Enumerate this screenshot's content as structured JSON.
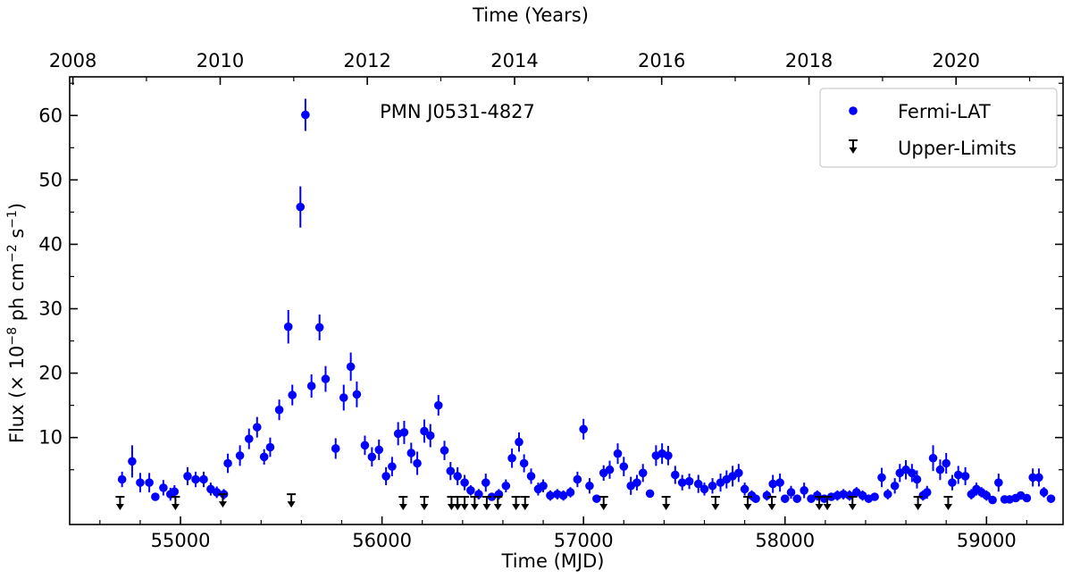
{
  "chart_data": {
    "type": "scatter",
    "title": "",
    "annotation": "PMN J0531-4827",
    "xlabel": "Time (MJD)",
    "x2label": "Time (Years)",
    "ylabel": "Flux (× 10",
    "ylabel_exp": "−8",
    "ylabel_mid": " ph cm",
    "ylabel_exp2": "−2",
    "ylabel_end": " s",
    "ylabel_exp3": "−1",
    "ylabel_close": ")",
    "xlim": [
      54450,
      59380
    ],
    "ylim": [
      -3.5,
      66
    ],
    "xticks": [
      "55000",
      "56000",
      "57000",
      "58000",
      "59000"
    ],
    "yticks": [
      "10",
      "20",
      "30",
      "40",
      "50",
      "60"
    ],
    "x2ticks": [
      "2008",
      "2010",
      "2012",
      "2014",
      "2016",
      "2018",
      "2020"
    ],
    "grid": false,
    "legend_position": "top-right",
    "legend": [
      {
        "label": "Fermi-LAT",
        "color": "#0000ff",
        "marker": "dot"
      },
      {
        "label": "Upper-Limits",
        "color": "#000000",
        "marker": "arrow"
      }
    ],
    "series": [
      {
        "name": "Fermi-LAT",
        "color": "#0000ff",
        "points": [
          [
            54710,
            3.5,
            1.2
          ],
          [
            54760,
            6.3,
            2.5
          ],
          [
            54800,
            3.0,
            1.5
          ],
          [
            54845,
            3.0,
            1.5
          ],
          [
            54875,
            0.8,
            0.6
          ],
          [
            54915,
            2.2,
            1.2
          ],
          [
            54950,
            1.2,
            1.0
          ],
          [
            54970,
            1.6,
            1.0
          ],
          [
            55035,
            4.0,
            1.4
          ],
          [
            55075,
            3.5,
            1.2
          ],
          [
            55115,
            3.5,
            1.2
          ],
          [
            55150,
            2.0,
            1.0
          ],
          [
            55180,
            1.5,
            0.9
          ],
          [
            55215,
            1.2,
            0.8
          ],
          [
            55235,
            6.0,
            1.5
          ],
          [
            55295,
            7.2,
            1.6
          ],
          [
            55340,
            9.8,
            1.6
          ],
          [
            55380,
            11.6,
            1.6
          ],
          [
            55415,
            7.0,
            1.2
          ],
          [
            55445,
            8.5,
            1.5
          ],
          [
            55490,
            14.3,
            1.6
          ],
          [
            55535,
            27.2,
            2.6
          ],
          [
            55555,
            16.6,
            1.6
          ],
          [
            55595,
            45.8,
            3.2
          ],
          [
            55620,
            60.1,
            2.5
          ],
          [
            55650,
            18.0,
            1.8
          ],
          [
            55690,
            27.1,
            2.0
          ],
          [
            55720,
            19.1,
            2.0
          ],
          [
            55770,
            8.3,
            1.6
          ],
          [
            55810,
            16.2,
            2.0
          ],
          [
            55845,
            21.0,
            2.2
          ],
          [
            55875,
            16.7,
            2.0
          ],
          [
            55915,
            8.8,
            1.5
          ],
          [
            55950,
            7.0,
            1.5
          ],
          [
            55985,
            8.1,
            1.6
          ],
          [
            56020,
            4.0,
            1.4
          ],
          [
            56050,
            5.5,
            1.5
          ],
          [
            56080,
            10.6,
            1.8
          ],
          [
            56110,
            10.8,
            1.8
          ],
          [
            56145,
            7.6,
            1.6
          ],
          [
            56175,
            6.0,
            1.8
          ],
          [
            56210,
            11.0,
            1.8
          ],
          [
            56240,
            10.3,
            1.8
          ],
          [
            56280,
            15.0,
            1.6
          ],
          [
            56310,
            8.0,
            1.5
          ],
          [
            56340,
            4.8,
            1.4
          ],
          [
            56375,
            4.0,
            1.4
          ],
          [
            56410,
            3.0,
            1.2
          ],
          [
            56440,
            1.8,
            0.8
          ],
          [
            56480,
            1.2,
            0.8
          ],
          [
            56515,
            3.0,
            1.4
          ],
          [
            56545,
            0.8,
            0.6
          ],
          [
            56580,
            1.2,
            0.8
          ],
          [
            56615,
            2.5,
            1.0
          ],
          [
            56645,
            6.8,
            1.5
          ],
          [
            56680,
            9.3,
            1.5
          ],
          [
            56705,
            6.0,
            1.4
          ],
          [
            56740,
            4.0,
            1.2
          ],
          [
            56775,
            2.0,
            1.0
          ],
          [
            56800,
            2.5,
            1.0
          ],
          [
            56835,
            1.0,
            0.8
          ],
          [
            56870,
            1.2,
            0.8
          ],
          [
            56900,
            1.0,
            0.8
          ],
          [
            56935,
            1.5,
            0.8
          ],
          [
            56970,
            3.5,
            1.2
          ],
          [
            57000,
            11.3,
            1.6
          ],
          [
            57030,
            2.5,
            1.2
          ],
          [
            57065,
            0.5,
            0.4
          ],
          [
            57100,
            4.5,
            1.2
          ],
          [
            57130,
            5.0,
            1.4
          ],
          [
            57170,
            7.5,
            1.6
          ],
          [
            57200,
            5.5,
            1.5
          ],
          [
            57235,
            2.5,
            1.4
          ],
          [
            57265,
            3.0,
            1.2
          ],
          [
            57295,
            4.5,
            1.4
          ],
          [
            57330,
            1.3,
            0.6
          ],
          [
            57360,
            7.2,
            1.6
          ],
          [
            57390,
            7.5,
            1.6
          ],
          [
            57420,
            7.2,
            1.5
          ],
          [
            57455,
            4.2,
            1.4
          ],
          [
            57490,
            3.0,
            1.2
          ],
          [
            57525,
            3.2,
            1.2
          ],
          [
            57570,
            2.8,
            1.4
          ],
          [
            57600,
            2.0,
            1.0
          ],
          [
            57640,
            2.5,
            1.2
          ],
          [
            57680,
            3.0,
            1.4
          ],
          [
            57710,
            3.5,
            1.4
          ],
          [
            57740,
            4.0,
            1.6
          ],
          [
            57770,
            4.5,
            1.4
          ],
          [
            57800,
            2.0,
            1.0
          ],
          [
            57835,
            1.0,
            0.8
          ],
          [
            57855,
            0.5,
            0.5
          ],
          [
            57910,
            1.0,
            0.8
          ],
          [
            57940,
            2.8,
            1.4
          ],
          [
            57975,
            3.0,
            1.4
          ],
          [
            58000,
            0.5,
            0.5
          ],
          [
            58030,
            1.5,
            1.0
          ],
          [
            58060,
            0.5,
            0.4
          ],
          [
            58095,
            1.8,
            1.2
          ],
          [
            58130,
            0.5,
            0.4
          ],
          [
            58160,
            1.0,
            0.8
          ],
          [
            58195,
            0.5,
            0.5
          ],
          [
            58230,
            0.8,
            0.6
          ],
          [
            58260,
            1.0,
            0.8
          ],
          [
            58290,
            1.2,
            0.8
          ],
          [
            58320,
            1.0,
            0.8
          ],
          [
            58355,
            1.5,
            0.8
          ],
          [
            58385,
            1.0,
            0.8
          ],
          [
            58415,
            0.5,
            0.5
          ],
          [
            58445,
            0.8,
            0.6
          ],
          [
            58480,
            3.8,
            1.5
          ],
          [
            58510,
            1.2,
            0.8
          ],
          [
            58545,
            2.5,
            1.2
          ],
          [
            58570,
            4.5,
            1.4
          ],
          [
            58600,
            5.0,
            1.5
          ],
          [
            58630,
            4.5,
            1.4
          ],
          [
            58655,
            3.5,
            1.4
          ],
          [
            58685,
            1.0,
            0.8
          ],
          [
            58705,
            1.5,
            1.0
          ],
          [
            58735,
            6.8,
            2.0
          ],
          [
            58770,
            5.0,
            1.6
          ],
          [
            58800,
            6.0,
            1.6
          ],
          [
            58830,
            3.0,
            1.2
          ],
          [
            58860,
            4.2,
            1.4
          ],
          [
            58895,
            4.0,
            1.4
          ],
          [
            58925,
            1.2,
            0.8
          ],
          [
            58950,
            2.0,
            1.0
          ],
          [
            58975,
            1.5,
            0.8
          ],
          [
            59000,
            1.0,
            0.8
          ],
          [
            59030,
            0.3,
            0.3
          ],
          [
            59060,
            3.0,
            1.4
          ],
          [
            59090,
            0.4,
            0.3
          ],
          [
            59115,
            0.4,
            0.3
          ],
          [
            59145,
            0.6,
            0.4
          ],
          [
            59170,
            1.0,
            0.6
          ],
          [
            59200,
            0.6,
            0.4
          ],
          [
            59230,
            3.8,
            1.4
          ],
          [
            59260,
            3.8,
            1.4
          ],
          [
            59285,
            1.5,
            0.8
          ],
          [
            59320,
            0.5,
            0.5
          ]
        ]
      },
      {
        "name": "Upper-Limits",
        "color": "#000000",
        "x": [
          54700,
          54975,
          55210,
          55550,
          56105,
          56210,
          56345,
          56375,
          56410,
          56460,
          56520,
          56575,
          56665,
          56710,
          57100,
          57410,
          57655,
          57815,
          57935,
          58170,
          58210,
          58335,
          58660,
          58810
        ],
        "y": [
          0.8,
          0.8,
          1.2,
          1.2,
          0.8,
          0.8,
          0.8,
          0.8,
          0.8,
          0.8,
          0.8,
          0.8,
          0.8,
          0.8,
          0.8,
          0.8,
          0.8,
          0.8,
          0.8,
          0.8,
          0.8,
          0.8,
          0.8,
          0.8
        ]
      }
    ]
  }
}
